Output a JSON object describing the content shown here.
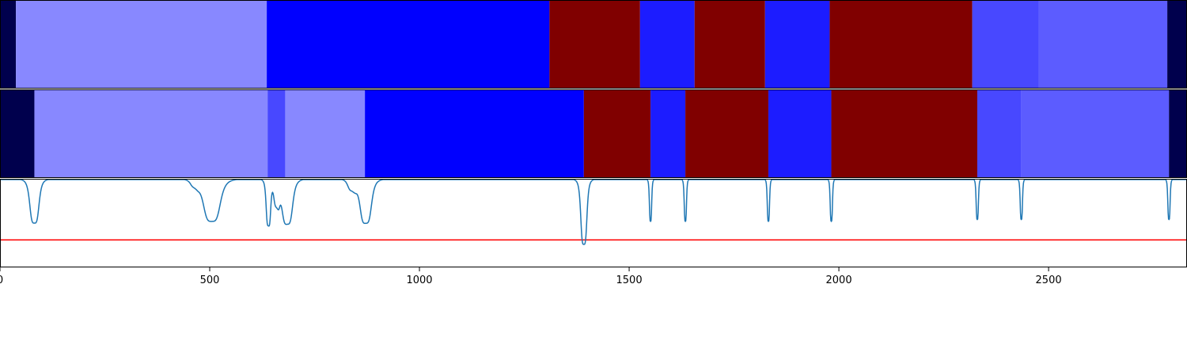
{
  "chart_data": {
    "type": "segment-heatmap-with-line",
    "x_range": [
      0,
      2830
    ],
    "x_ticks": [
      {
        "value": 0,
        "label": "0"
      },
      {
        "value": 500,
        "label": "500"
      },
      {
        "value": 1000,
        "label": "1000"
      },
      {
        "value": 1500,
        "label": "1500"
      },
      {
        "value": 2000,
        "label": "2000"
      },
      {
        "value": 2500,
        "label": "2500"
      }
    ],
    "tracks": [
      {
        "name": "segmentation-top",
        "segments": [
          {
            "start": 0,
            "end": 38,
            "color": "#00004d"
          },
          {
            "start": 38,
            "end": 636,
            "color": "#8888ff"
          },
          {
            "start": 636,
            "end": 1310,
            "color": "#0000ff"
          },
          {
            "start": 1310,
            "end": 1526,
            "color": "#800000"
          },
          {
            "start": 1526,
            "end": 1656,
            "color": "#1c1cff"
          },
          {
            "start": 1656,
            "end": 1824,
            "color": "#800000"
          },
          {
            "start": 1824,
            "end": 1978,
            "color": "#1c1cff"
          },
          {
            "start": 1978,
            "end": 2318,
            "color": "#800000"
          },
          {
            "start": 2318,
            "end": 2477,
            "color": "#4848ff"
          },
          {
            "start": 2477,
            "end": 2783,
            "color": "#5c5cff"
          },
          {
            "start": 2783,
            "end": 2830,
            "color": "#00004d"
          }
        ]
      },
      {
        "name": "segmentation-middle",
        "segments": [
          {
            "start": 0,
            "end": 82,
            "color": "#00004d"
          },
          {
            "start": 82,
            "end": 638,
            "color": "#8888ff"
          },
          {
            "start": 638,
            "end": 680,
            "color": "#4848ff"
          },
          {
            "start": 680,
            "end": 870,
            "color": "#8888ff"
          },
          {
            "start": 870,
            "end": 1392,
            "color": "#0000ff"
          },
          {
            "start": 1392,
            "end": 1551,
            "color": "#800000"
          },
          {
            "start": 1551,
            "end": 1634,
            "color": "#1c1cff"
          },
          {
            "start": 1634,
            "end": 1832,
            "color": "#800000"
          },
          {
            "start": 1832,
            "end": 1982,
            "color": "#1c1cff"
          },
          {
            "start": 1982,
            "end": 2330,
            "color": "#800000"
          },
          {
            "start": 2330,
            "end": 2435,
            "color": "#4848ff"
          },
          {
            "start": 2435,
            "end": 2787,
            "color": "#5c5cff"
          },
          {
            "start": 2787,
            "end": 2830,
            "color": "#00004d"
          }
        ]
      }
    ],
    "line": {
      "name": "signal",
      "color": "#1f77b4",
      "y_range": [
        0,
        1
      ],
      "baseline": 1.0,
      "dips": [
        {
          "x": 82,
          "value": 0.5,
          "width": 12
        },
        {
          "x": 505,
          "value": 0.52,
          "width": 22
        },
        {
          "x": 640,
          "value": 0.48,
          "width": 6
        },
        {
          "x": 685,
          "value": 0.49,
          "width": 14
        },
        {
          "x": 872,
          "value": 0.5,
          "width": 15
        },
        {
          "x": 1392,
          "value": 0.26,
          "width": 8
        },
        {
          "x": 1551,
          "value": 0.52,
          "width": 3
        },
        {
          "x": 1634,
          "value": 0.52,
          "width": 3
        },
        {
          "x": 1832,
          "value": 0.52,
          "width": 3
        },
        {
          "x": 1982,
          "value": 0.52,
          "width": 3
        },
        {
          "x": 2330,
          "value": 0.54,
          "width": 3
        },
        {
          "x": 2435,
          "value": 0.54,
          "width": 3
        },
        {
          "x": 2787,
          "value": 0.54,
          "width": 3
        }
      ],
      "shoulders": [
        {
          "x": 465,
          "value": 0.93,
          "width": 12
        },
        {
          "x": 660,
          "value": 0.72,
          "width": 8
        },
        {
          "x": 840,
          "value": 0.88,
          "width": 12
        }
      ]
    },
    "threshold": {
      "value": 0.31,
      "color": "#ff0000"
    },
    "grid": false,
    "legend": "none"
  }
}
